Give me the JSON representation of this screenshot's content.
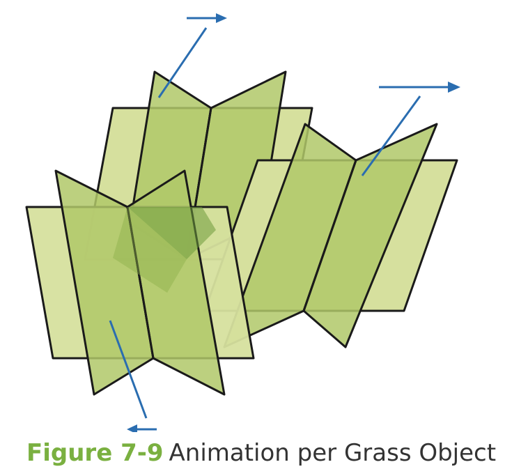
{
  "figure": {
    "colors": {
      "blade_light": "#d6e09e",
      "blade_mid": "#b0c868",
      "blade_dark": "#8cb04a",
      "blade_darkest": "#6e9a3c",
      "outline": "#1a1a1a",
      "arrow": "#2a6db0",
      "caption_label": "#7ab040",
      "caption_text": "#333333"
    },
    "arrows": [
      "wind-arrow",
      "wind-arrow",
      "wind-arrow"
    ]
  },
  "caption": {
    "label": "Figure 7-9",
    "text": "Animation per Grass Object"
  }
}
